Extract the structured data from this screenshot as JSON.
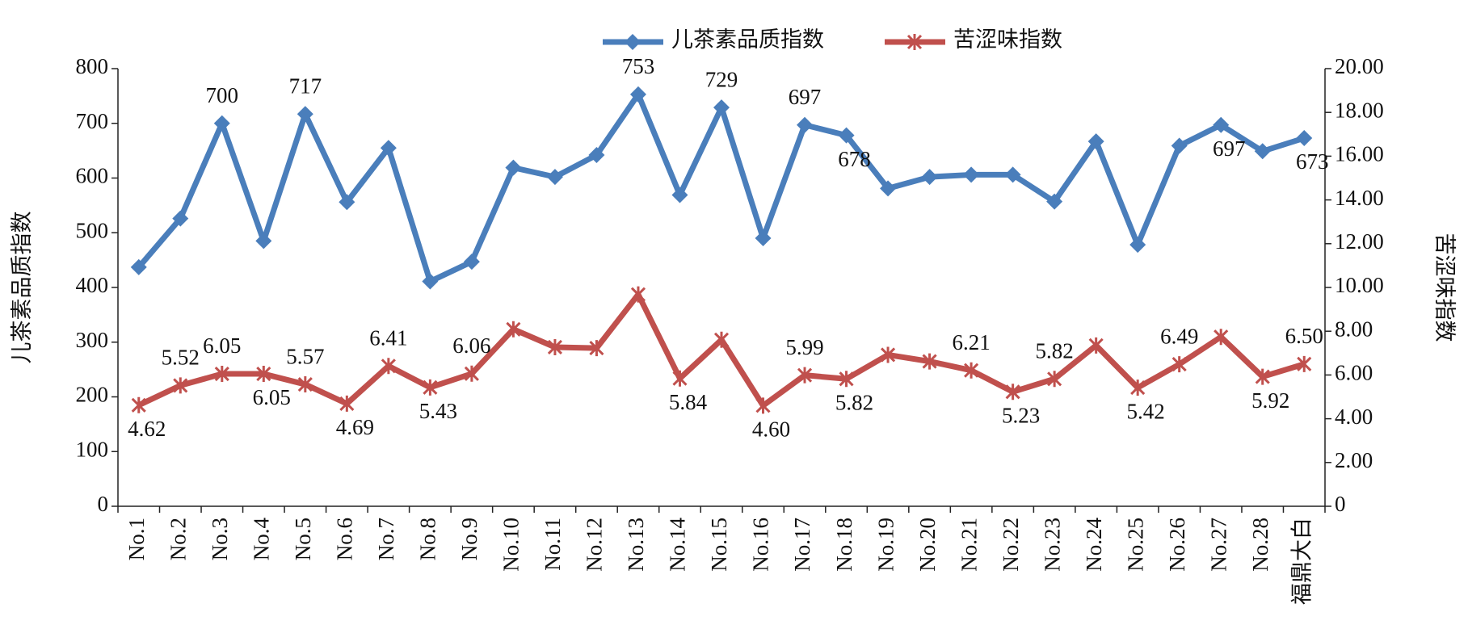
{
  "chart_data": {
    "type": "line",
    "y_label": "儿茶素品质指数",
    "y2_label": "苦涩味指数",
    "categories": [
      "No.1",
      "No.2",
      "No.3",
      "No.4",
      "No.5",
      "No.6",
      "No.7",
      "No.8",
      "No.9",
      "No.10",
      "No.11",
      "No.12",
      "No.13",
      "No.14",
      "No.15",
      "No.16",
      "No.17",
      "No.18",
      "No.19",
      "No.20",
      "No.21",
      "No.22",
      "No.23",
      "No.24",
      "No.25",
      "No.26",
      "No.27",
      "No.28",
      "福鼎大白"
    ],
    "series": [
      {
        "name": "儿茶素品质指数",
        "color": "#4a7ebb",
        "marker": "diamond",
        "values": [
          437,
          526,
          700,
          485,
          717,
          556,
          655,
          411,
          447,
          619,
          602,
          642,
          753,
          569,
          729,
          490,
          697,
          678,
          581,
          602,
          606,
          606,
          557,
          667,
          478,
          659,
          697,
          649,
          673
        ],
        "value_labels": [
          null,
          null,
          "700",
          null,
          "717",
          null,
          null,
          null,
          null,
          null,
          null,
          null,
          "753",
          null,
          "729",
          null,
          "697",
          "678",
          null,
          null,
          null,
          null,
          null,
          null,
          null,
          null,
          "697",
          null,
          "673"
        ]
      },
      {
        "name": "苦涩味指数",
        "color": "#c0504d",
        "marker": "asterisk",
        "axis": "y2",
        "values": [
          4.62,
          5.52,
          6.05,
          6.05,
          5.57,
          4.69,
          6.41,
          5.43,
          6.06,
          8.09,
          7.27,
          7.23,
          9.68,
          5.84,
          7.61,
          4.6,
          5.99,
          5.82,
          6.92,
          6.62,
          6.21,
          5.23,
          5.82,
          7.35,
          5.42,
          6.49,
          7.74,
          5.92,
          6.5
        ],
        "value_labels": [
          "4.62",
          "5.52",
          "6.05",
          "6.05",
          "5.57",
          "4.69",
          "6.41",
          "5.43",
          "6.06",
          null,
          null,
          null,
          null,
          "5.84",
          null,
          "4.60",
          "5.99",
          "5.82",
          null,
          null,
          "6.21",
          "5.23",
          "5.82",
          null,
          "5.42",
          "6.49",
          null,
          "5.92",
          "6.50"
        ]
      }
    ],
    "ylim": [
      0,
      800
    ],
    "yticks": [
      0,
      100,
      200,
      300,
      400,
      500,
      600,
      700,
      800
    ],
    "y2lim": [
      0,
      20
    ],
    "y2ticks": [
      0,
      {
        "value": 2,
        "label": "2.00"
      },
      {
        "value": 4,
        "label": "4.00"
      },
      {
        "value": 6,
        "label": "6.00"
      },
      {
        "value": 8,
        "label": "8.00"
      },
      {
        "value": 10,
        "label": "10.00"
      },
      {
        "value": 12,
        "label": "12.00"
      },
      {
        "value": 14,
        "label": "14.00"
      },
      {
        "value": 16,
        "label": "16.00"
      },
      {
        "value": 18,
        "label": "18.00"
      },
      {
        "value": 20,
        "label": "20.00"
      }
    ],
    "legend": "top"
  }
}
